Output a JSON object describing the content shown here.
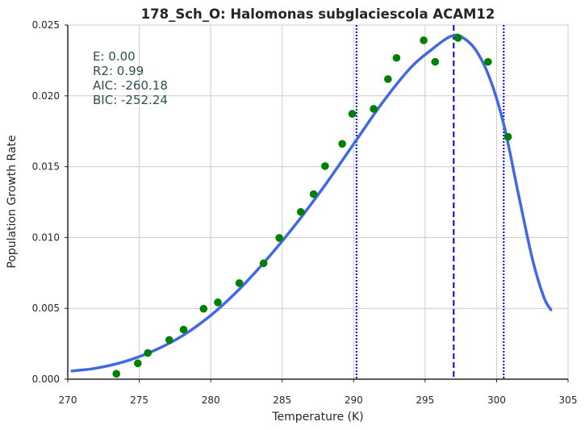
{
  "chart_data": {
    "type": "scatter",
    "title": "178_Sch_O: Halomonas subglaciescola ACAM12",
    "xlabel": "Temperature (K)",
    "ylabel": "Population Growth Rate",
    "xlim": [
      270,
      305
    ],
    "ylim": [
      0.0,
      0.025
    ],
    "xticks": [
      "270",
      "275",
      "280",
      "285",
      "290",
      "295",
      "300",
      "305"
    ],
    "yticks": [
      "0.000",
      "0.005",
      "0.010",
      "0.015",
      "0.020",
      "0.025"
    ],
    "grid": true,
    "stats": [
      "E:  0.00",
      "R2:  0.99",
      "AIC: -260.18",
      "BIC: -252.24"
    ],
    "series": [
      {
        "kind": "observed",
        "marker": "circle",
        "color": "#008000",
        "x": [
          273.4,
          274.9,
          275.6,
          277.1,
          278.1,
          279.5,
          280.5,
          282.0,
          283.7,
          284.8,
          286.3,
          287.2,
          288.0,
          289.2,
          289.9,
          291.4,
          292.4,
          293.0,
          294.9,
          295.7,
          297.3,
          299.4,
          300.8
        ],
        "y": [
          0.00038,
          0.00112,
          0.00185,
          0.00277,
          0.0035,
          0.00497,
          0.00542,
          0.00678,
          0.00818,
          0.00997,
          0.01181,
          0.01306,
          0.01504,
          0.01661,
          0.01873,
          0.01908,
          0.02118,
          0.02268,
          0.02392,
          0.0224,
          0.02409,
          0.0224,
          0.01711
        ]
      },
      {
        "kind": "fit",
        "marker": "line",
        "color": "#4169e1",
        "x": [
          270.3,
          272.0,
          274.0,
          276.0,
          278.0,
          280.0,
          282.0,
          284.0,
          286.0,
          288.0,
          290.0,
          292.0,
          294.0,
          295.5,
          296.5,
          297.0,
          297.5,
          298.5,
          299.5,
          300.5,
          301.5,
          302.5,
          303.3,
          303.8
        ],
        "y": [
          0.00058,
          0.00078,
          0.00125,
          0.002,
          0.00305,
          0.0045,
          0.00635,
          0.00855,
          0.011,
          0.0137,
          0.0166,
          0.0195,
          0.022,
          0.0233,
          0.02405,
          0.02425,
          0.0242,
          0.0233,
          0.0213,
          0.018,
          0.0132,
          0.0085,
          0.0058,
          0.0049
        ]
      }
    ],
    "vlines": [
      {
        "x": 290.2,
        "style": "dotted",
        "color": "#0000ff"
      },
      {
        "x": 297.0,
        "style": "dashed",
        "color": "#0000ff"
      },
      {
        "x": 300.5,
        "style": "dotted",
        "color": "#0000ff"
      }
    ]
  },
  "colors": {
    "axis": "#262626",
    "grid": "#cccccc",
    "stats_text": "#2f4f4f"
  }
}
